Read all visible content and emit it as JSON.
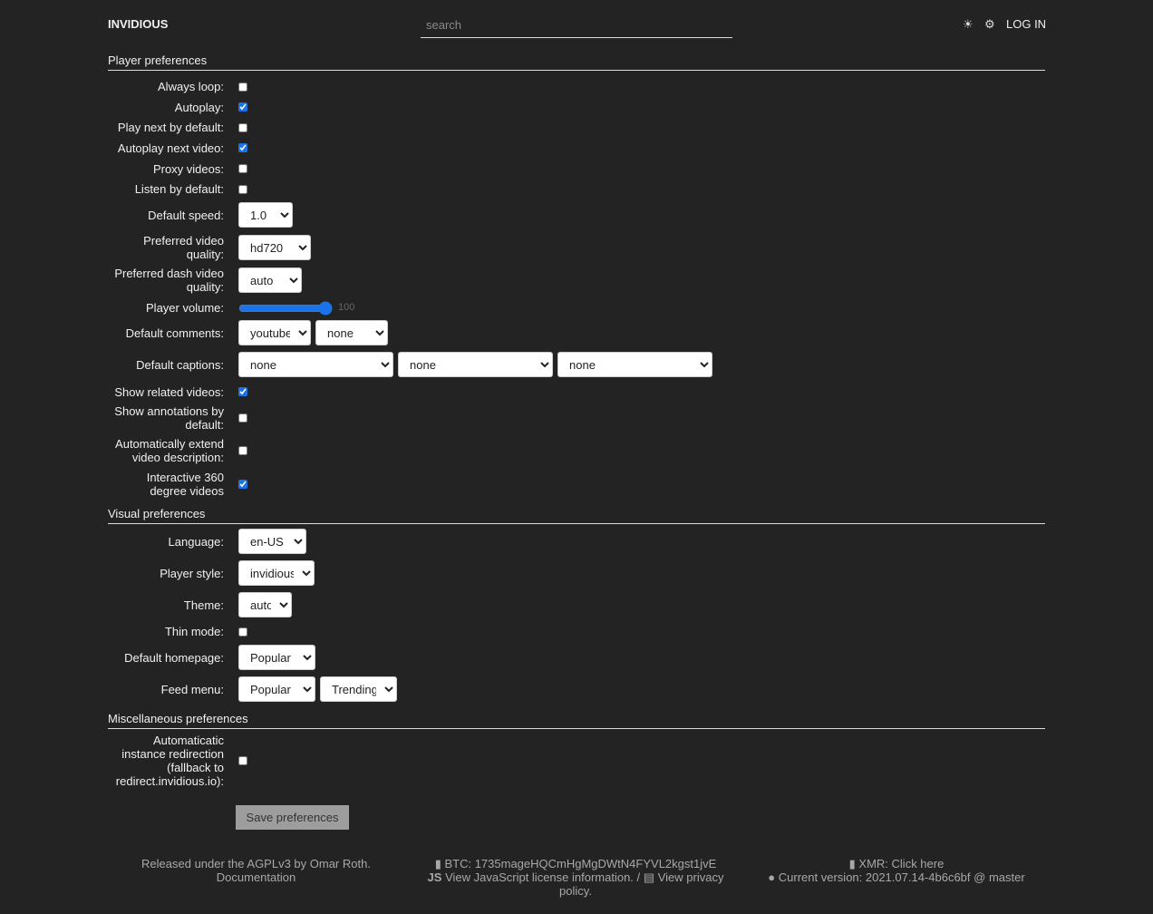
{
  "header": {
    "brand": "INVIDIOUS",
    "search_placeholder": "search",
    "theme_icon": "sun-icon",
    "settings_icon": "gear-icon",
    "login": "LOG IN"
  },
  "player": {
    "title": "Player preferences",
    "always_loop": {
      "label": "Always loop:",
      "checked": false
    },
    "autoplay": {
      "label": "Autoplay:",
      "checked": true
    },
    "play_next": {
      "label": "Play next by default:",
      "checked": false
    },
    "autoplay_next": {
      "label": "Autoplay next video:",
      "checked": true
    },
    "proxy": {
      "label": "Proxy videos:",
      "checked": false
    },
    "listen": {
      "label": "Listen by default:",
      "checked": false
    },
    "speed": {
      "label": "Default speed:",
      "value": "1.0"
    },
    "quality": {
      "label": "Preferred video quality:",
      "value": "hd720"
    },
    "dash_quality": {
      "label": "Preferred dash video quality:",
      "value": "auto"
    },
    "volume": {
      "label": "Player volume:",
      "value": 100
    },
    "comments": {
      "label": "Default comments:",
      "values": [
        "youtube",
        "none"
      ]
    },
    "captions": {
      "label": "Default captions:",
      "values": [
        "none",
        "none",
        "none"
      ]
    },
    "related": {
      "label": "Show related videos:",
      "checked": true
    },
    "annotations": {
      "label": "Show annotations by default:",
      "checked": false
    },
    "extend_desc": {
      "label": "Automatically extend video description:",
      "checked": false
    },
    "vr": {
      "label": "Interactive 360 degree videos",
      "checked": true
    }
  },
  "visual": {
    "title": "Visual preferences",
    "language": {
      "label": "Language:",
      "value": "en-US"
    },
    "player_style": {
      "label": "Player style:",
      "value": "invidious"
    },
    "theme": {
      "label": "Theme:",
      "value": "auto"
    },
    "thin_mode": {
      "label": "Thin mode:",
      "checked": false
    },
    "homepage": {
      "label": "Default homepage:",
      "value": "Popular"
    },
    "feed_menu": {
      "label": "Feed menu:",
      "values": [
        "Popular",
        "Trending"
      ]
    }
  },
  "misc": {
    "title": "Miscellaneous preferences",
    "redirect": {
      "label": "Automaticatic instance redirection (fallback to redirect.invidious.io):",
      "checked": false
    }
  },
  "save_label": "Save preferences",
  "footer": {
    "released": "Released under the AGPLv3 by Omar Roth.",
    "documentation": "Documentation",
    "btc": "BTC: 1735mageHQCmHgMgDWtN4FYVL2kgst1jvE",
    "js_license": "View JavaScript license information.",
    "sep": "/",
    "privacy": "View privacy policy.",
    "xmr": "XMR: Click here",
    "version": "Current version: 2021.07.14-4b6c6bf @ master"
  }
}
